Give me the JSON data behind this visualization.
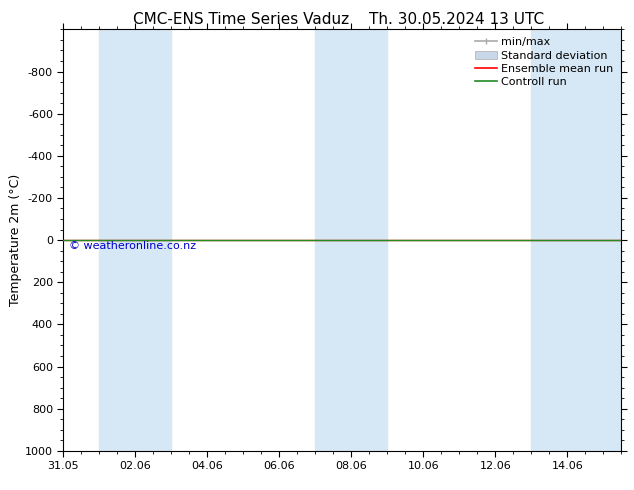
{
  "title_left": "CMC-ENS Time Series Vaduz",
  "title_right": "Th. 30.05.2024 13 UTC",
  "ylabel": "Temperature 2m (°C)",
  "watermark": "© weatheronline.co.nz",
  "ylim_bottom": 1000,
  "ylim_top": -1000,
  "yticks": [
    -800,
    -600,
    -400,
    -200,
    0,
    200,
    400,
    600,
    800,
    1000
  ],
  "xlim_start": 0.0,
  "xlim_end": 15.5,
  "xtick_positions": [
    0,
    2,
    4,
    6,
    8,
    10,
    12,
    14
  ],
  "xtick_labels": [
    "31.05",
    "02.06",
    "04.06",
    "06.06",
    "08.06",
    "10.06",
    "12.06",
    "14.06"
  ],
  "shaded_columns": [
    {
      "xstart": 1.0,
      "xend": 3.0
    },
    {
      "xstart": 7.0,
      "xend": 9.0
    },
    {
      "xstart": 13.0,
      "xend": 15.5
    }
  ],
  "ensemble_mean_y": 0,
  "control_run_y": 0,
  "ensemble_color": "#ff0000",
  "control_color": "#228B22",
  "background_color": "#ffffff",
  "plot_bg_color": "#ffffff",
  "shade_color": "#d6e8f5",
  "legend_fontsize": 8,
  "title_fontsize": 11,
  "ylabel_fontsize": 9,
  "watermark_color": "#0000cc"
}
